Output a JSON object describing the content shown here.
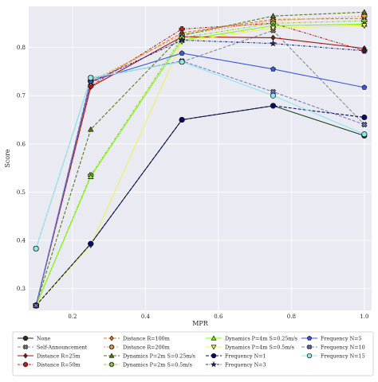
{
  "chart_data": {
    "type": "line",
    "title": "",
    "xlabel": "MPR",
    "ylabel": "Score",
    "xlim": [
      0.08,
      1.02
    ],
    "ylim": [
      0.255,
      0.885
    ],
    "xticks": [
      0.2,
      0.4,
      0.6,
      0.8,
      1.0
    ],
    "xtick_labels": [
      "0.2",
      "0.4",
      "0.6",
      "0.8",
      "1.0"
    ],
    "yticks": [
      0.3,
      0.4,
      0.5,
      0.6,
      0.7,
      0.8
    ],
    "ytick_labels": [
      "0.3",
      "0.4",
      "0.5",
      "0.6",
      "0.7",
      "0.8"
    ],
    "grid": true,
    "legend_position": "bottom",
    "background_color": "#eaeaf2",
    "x": [
      0.1,
      0.25,
      0.5,
      0.75,
      1.0
    ],
    "series": [
      {
        "name": "None",
        "color": "#1a3a1a",
        "marker": "circle",
        "dash": "",
        "values": [
          0.265,
          0.393,
          0.65,
          0.679,
          0.617
        ]
      },
      {
        "name": "Self-Announcement",
        "color": "#8a8a8a",
        "marker": "x",
        "dash": "4,2",
        "values": [
          0.383,
          0.737,
          0.77,
          0.835,
          0.64
        ]
      },
      {
        "name": "Distance R=25m",
        "color": "#a01010",
        "marker": "diamond",
        "dash": "",
        "values": [
          0.265,
          0.718,
          0.822,
          0.82,
          0.798
        ]
      },
      {
        "name": "Distance R=50m",
        "color": "#d01a1a",
        "marker": "plus",
        "dash": "3,1.5,1,1.5",
        "values": [
          0.265,
          0.72,
          0.838,
          0.85,
          0.793
        ]
      },
      {
        "name": "Distance R=100m",
        "color": "#e07a1a",
        "marker": "diamond",
        "dash": "4,2",
        "values": [
          0.265,
          0.725,
          0.83,
          0.858,
          0.86
        ]
      },
      {
        "name": "Distance R=200m",
        "color": "#f0a050",
        "marker": "plus",
        "dash": "2,2",
        "values": [
          0.265,
          0.73,
          0.826,
          0.855,
          0.865
        ]
      },
      {
        "name": "Dynamics P=2m S=0.25m/s",
        "color": "#5a7a10",
        "marker": "triangle",
        "dash": "4,2",
        "values": [
          0.265,
          0.63,
          0.825,
          0.865,
          0.873
        ]
      },
      {
        "name": "Dynamics P=2m S=0.5m/s",
        "color": "#9acd32",
        "marker": "plus",
        "dash": "3,1.5,1,1.5",
        "values": [
          0.265,
          0.535,
          0.82,
          0.85,
          0.855
        ]
      },
      {
        "name": "Dynamics P=4m S=0.25m/s",
        "color": "#7cfc00",
        "marker": "triangle",
        "dash": "",
        "values": [
          0.265,
          0.532,
          0.815,
          0.845,
          0.848
        ]
      },
      {
        "name": "Dynamics P=4m S=0.5m/s",
        "color": "#f0f060",
        "marker": "triangle-down",
        "dash": "",
        "values": [
          0.265,
          0.39,
          0.812,
          0.84,
          0.845
        ]
      },
      {
        "name": "Frequency N=1",
        "color": "#0a0a6a",
        "marker": "circle",
        "dash": "4,2",
        "values": [
          0.265,
          0.393,
          0.65,
          0.679,
          0.655
        ]
      },
      {
        "name": "Frequency N=3",
        "color": "#1a2a9a",
        "marker": "star",
        "dash": "3,1.5,1,1.5",
        "values": [
          0.265,
          0.728,
          0.815,
          0.808,
          0.793
        ]
      },
      {
        "name": "Frequency N=5",
        "color": "#3a5ae0",
        "marker": "pentagon",
        "dash": "",
        "values": [
          0.265,
          0.73,
          0.788,
          0.755,
          0.717
        ]
      },
      {
        "name": "Frequency N=10",
        "color": "#7a7ad0",
        "marker": "x",
        "dash": "4,2",
        "values": [
          0.265,
          0.735,
          0.772,
          0.708,
          0.64
        ]
      },
      {
        "name": "Frequency N=15",
        "color": "#8ee8e8",
        "marker": "circle",
        "dash": "",
        "values": [
          0.383,
          0.737,
          0.77,
          0.7,
          0.62
        ]
      }
    ]
  }
}
